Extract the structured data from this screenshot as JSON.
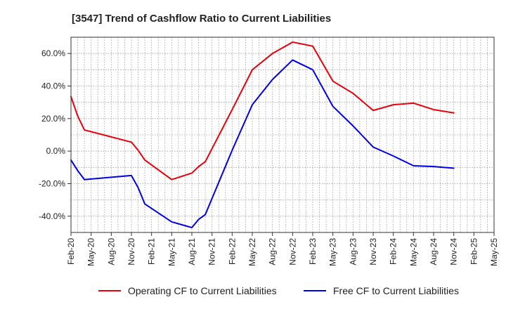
{
  "chart_data": {
    "type": "line",
    "title": "[3547]  Trend of Cashflow Ratio to Current Liabilities",
    "xlabel": "",
    "ylabel": "",
    "x": [
      "Feb-20",
      "Mar-20",
      "Apr-20",
      "May-20",
      "Jun-20",
      "Jul-20",
      "Aug-20",
      "Sep-20",
      "Oct-20",
      "Nov-20",
      "Dec-20",
      "Jan-21",
      "Feb-21",
      "Mar-21",
      "Apr-21",
      "May-21",
      "Jun-21",
      "Jul-21",
      "Aug-21",
      "Sep-21",
      "Oct-21",
      "Nov-21",
      "Dec-21",
      "Jan-22",
      "Feb-22",
      "Mar-22",
      "Apr-22",
      "May-22",
      "Jun-22",
      "Jul-22",
      "Aug-22",
      "Sep-22",
      "Oct-22",
      "Nov-22",
      "Dec-22",
      "Jan-23",
      "Feb-23",
      "Mar-23",
      "Apr-23",
      "May-23",
      "Jun-23",
      "Jul-23",
      "Aug-23",
      "Sep-23",
      "Oct-23",
      "Nov-23",
      "Dec-23",
      "Jan-24",
      "Feb-24",
      "Mar-24",
      "Apr-24",
      "May-24",
      "Jun-24",
      "Jul-24",
      "Aug-24",
      "Sep-24",
      "Oct-24",
      "Nov-24",
      "Dec-24",
      "Jan-25",
      "Feb-25",
      "Mar-25",
      "Apr-25",
      "May-25"
    ],
    "x_tick_labels": [
      "Feb-20",
      "May-20",
      "Aug-20",
      "Nov-20",
      "Feb-21",
      "May-21",
      "Aug-21",
      "Nov-21",
      "Feb-22",
      "May-22",
      "Aug-22",
      "Nov-22",
      "Feb-23",
      "May-23",
      "Aug-23",
      "Nov-23",
      "Feb-24",
      "May-24",
      "Aug-24",
      "Nov-24",
      "Feb-25",
      "May-25"
    ],
    "ylim": [
      -50,
      70
    ],
    "y_ticks": [
      -40,
      -20,
      0,
      20,
      40,
      60
    ],
    "y_tick_labels": [
      "-40.0%",
      "-20.0%",
      "0.0%",
      "20.0%",
      "40.0%",
      "60.0%"
    ],
    "grid": true,
    "legend_position": "bottom",
    "series": [
      {
        "name": "Operating CF to Current Liabilities",
        "color": "#e8000b",
        "points": [
          [
            "Feb-20",
            33.5
          ],
          [
            "Mar-20",
            21.5
          ],
          [
            "Apr-20",
            13.0
          ],
          [
            "Nov-20",
            5.5
          ],
          [
            "Dec-20",
            0.5
          ],
          [
            "Jan-21",
            -5.5
          ],
          [
            "May-21",
            -17.5
          ],
          [
            "Aug-21",
            -13.5
          ],
          [
            "Sep-21",
            -9.5
          ],
          [
            "Oct-21",
            -6.5
          ],
          [
            "Feb-22",
            25.5
          ],
          [
            "May-22",
            50.0
          ],
          [
            "Aug-22",
            60.0
          ],
          [
            "Nov-22",
            67.0
          ],
          [
            "Feb-23",
            64.5
          ],
          [
            "May-23",
            43.0
          ],
          [
            "Aug-23",
            35.5
          ],
          [
            "Nov-23",
            25.0
          ],
          [
            "Feb-24",
            28.5
          ],
          [
            "May-24",
            29.5
          ],
          [
            "Aug-24",
            25.5
          ],
          [
            "Nov-24",
            23.5
          ]
        ]
      },
      {
        "name": "Free CF to Current Liabilities",
        "color": "#0000e8",
        "points": [
          [
            "Feb-20",
            -5.5
          ],
          [
            "Mar-20",
            -12.0
          ],
          [
            "Apr-20",
            -17.5
          ],
          [
            "Nov-20",
            -15.0
          ],
          [
            "Dec-20",
            -22.5
          ],
          [
            "Jan-21",
            -32.5
          ],
          [
            "May-21",
            -43.5
          ],
          [
            "Aug-21",
            -47.0
          ],
          [
            "Sep-21",
            -42.0
          ],
          [
            "Oct-21",
            -39.0
          ],
          [
            "Feb-22",
            0.5
          ],
          [
            "May-22",
            28.5
          ],
          [
            "Aug-22",
            44.0
          ],
          [
            "Nov-22",
            56.0
          ],
          [
            "Feb-23",
            50.0
          ],
          [
            "May-23",
            27.5
          ],
          [
            "Aug-23",
            15.5
          ],
          [
            "Nov-23",
            2.5
          ],
          [
            "Feb-24",
            -3.0
          ],
          [
            "May-24",
            -9.0
          ],
          [
            "Aug-24",
            -9.5
          ],
          [
            "Nov-24",
            -10.5
          ]
        ]
      }
    ]
  }
}
